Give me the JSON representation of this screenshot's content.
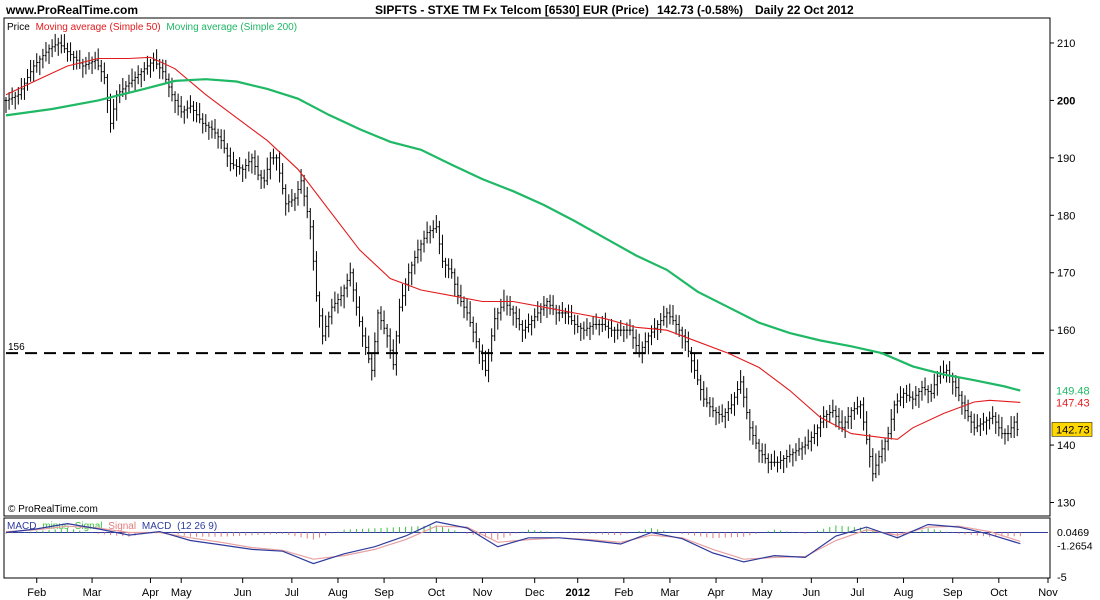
{
  "header": {
    "site": "www.ProRealTime.com",
    "title": "SIPFTS - STXE TM Fx Telcom [6530] EUR (Price)",
    "last": "142.73 (-0.58%)",
    "period": "Daily  22 Oct 2012"
  },
  "watermark": "© ProRealTime.com",
  "legend": {
    "price": "Price",
    "ma50": "Moving average (Simple 50)",
    "ma200": "Moving average (Simple 200)",
    "macd_prefix": "MACD",
    "macd_minus": "minus",
    "macd_signal_word": "Signal",
    "macd_signal": "Signal",
    "macd_line": "MACD",
    "macd_params": "(12 26 9)"
  },
  "colors": {
    "ma50": "#e31a1c",
    "ma200": "#1fb865",
    "price": "#000000",
    "signal": "#e8a0a0",
    "macd": "#2f3b9c",
    "hist_pos": "#3ec03e",
    "hist_neg": "#e37b7b",
    "last_badge": "#ffd700"
  },
  "chart_data": {
    "type": "line",
    "title": "SIPFTS - STXE TM Fx Telcom [6530] EUR (Price)",
    "price_panel": {
      "y_ticks": [
        "210",
        "200",
        "190",
        "180",
        "170",
        "160",
        "140",
        "130"
      ],
      "ylim": [
        128,
        214
      ],
      "reference_line": {
        "value": 156,
        "label": "156",
        "style": "dashed"
      },
      "axis_badges": [
        {
          "value": 149.48,
          "label": "149.48",
          "series": "ma200"
        },
        {
          "value": 147.43,
          "label": "147.43",
          "series": "ma50"
        },
        {
          "value": 142.73,
          "label": "142.73",
          "series": "price"
        }
      ],
      "series": [
        {
          "name": "Price",
          "key": "price",
          "points": [
            [
              0,
              200
            ],
            [
              4,
              201
            ],
            [
              9,
              206
            ],
            [
              14,
              209
            ],
            [
              17,
              210
            ],
            [
              21,
              208
            ],
            [
              25,
              206
            ],
            [
              29,
              207
            ],
            [
              32,
              204
            ],
            [
              34,
              196
            ],
            [
              36,
              201
            ],
            [
              40,
              203
            ],
            [
              44,
              205
            ],
            [
              48,
              207
            ],
            [
              51,
              205
            ],
            [
              54,
              201
            ],
            [
              57,
              198
            ],
            [
              60,
              199
            ],
            [
              64,
              196
            ],
            [
              67,
              195
            ],
            [
              70,
              193
            ],
            [
              73,
              189
            ],
            [
              77,
              188
            ],
            [
              80,
              190
            ],
            [
              82,
              187
            ],
            [
              84,
              186
            ],
            [
              86,
              190
            ],
            [
              88,
              190
            ],
            [
              91,
              182
            ],
            [
              94,
              183
            ],
            [
              96,
              186
            ],
            [
              99,
              178
            ],
            [
              101,
              166
            ],
            [
              103,
              159
            ],
            [
              106,
              164
            ],
            [
              109,
              166
            ],
            [
              112,
              170
            ],
            [
              114,
              164
            ],
            [
              116,
              159
            ],
            [
              119,
              153
            ],
            [
              121,
              163
            ],
            [
              124,
              159
            ],
            [
              126,
              154
            ],
            [
              128,
              164
            ],
            [
              131,
              170
            ],
            [
              134,
              174
            ],
            [
              137,
              177
            ],
            [
              140,
              178
            ],
            [
              142,
              172
            ],
            [
              145,
              170
            ],
            [
              147,
              166
            ],
            [
              150,
              163
            ],
            [
              153,
              158
            ],
            [
              156,
              153
            ],
            [
              159,
              162
            ],
            [
              162,
              165
            ],
            [
              165,
              163
            ],
            [
              168,
              160
            ],
            [
              170,
              161
            ],
            [
              173,
              163
            ],
            [
              176,
              165
            ],
            [
              179,
              163
            ],
            [
              182,
              163
            ],
            [
              185,
              161
            ],
            [
              188,
              160
            ],
            [
              191,
              161
            ],
            [
              194,
              161
            ],
            [
              197,
              160
            ],
            [
              200,
              160
            ],
            [
              203,
              160
            ],
            [
              206,
              156
            ],
            [
              209,
              159
            ],
            [
              212,
              161
            ],
            [
              215,
              163
            ],
            [
              218,
              161
            ],
            [
              221,
              158
            ],
            [
              224,
              153
            ],
            [
              227,
              148
            ],
            [
              230,
              146
            ],
            [
              233,
              145
            ],
            [
              236,
              147
            ],
            [
              239,
              151
            ],
            [
              242,
              143
            ],
            [
              245,
              139
            ],
            [
              248,
              137
            ],
            [
              251,
              137
            ],
            [
              254,
              138
            ],
            [
              257,
              139
            ],
            [
              260,
              140
            ],
            [
              263,
              142
            ],
            [
              266,
              145
            ],
            [
              269,
              146
            ],
            [
              272,
              143
            ],
            [
              275,
              146
            ],
            [
              278,
              147
            ],
            [
              280,
              141
            ],
            [
              282,
              135
            ],
            [
              284,
              138
            ],
            [
              287,
              142
            ],
            [
              289,
              147
            ],
            [
              292,
              149
            ],
            [
              295,
              148
            ],
            [
              298,
              150
            ],
            [
              301,
              149
            ],
            [
              303,
              152
            ],
            [
              306,
              153
            ],
            [
              309,
              150
            ],
            [
              312,
              146
            ],
            [
              315,
              143
            ],
            [
              318,
              144
            ],
            [
              321,
              145
            ],
            [
              324,
              142
            ],
            [
              326,
              142
            ],
            [
              328,
              144
            ],
            [
              329,
              142.73
            ]
          ]
        },
        {
          "name": "Moving average (Simple 50)",
          "key": "ma50",
          "points": [
            [
              0,
              201
            ],
            [
              10,
              203.5
            ],
            [
              20,
              206
            ],
            [
              30,
              207.3
            ],
            [
              40,
              207.3
            ],
            [
              47,
              207.5
            ],
            [
              55,
              205.5
            ],
            [
              65,
              201
            ],
            [
              75,
              197
            ],
            [
              85,
              193
            ],
            [
              95,
              188
            ],
            [
              105,
              181
            ],
            [
              115,
              174
            ],
            [
              125,
              169
            ],
            [
              135,
              167
            ],
            [
              145,
              166
            ],
            [
              155,
              165
            ],
            [
              165,
              165
            ],
            [
              175,
              164
            ],
            [
              185,
              163
            ],
            [
              195,
              162
            ],
            [
              205,
              160.5
            ],
            [
              215,
              160
            ],
            [
              225,
              158
            ],
            [
              235,
              156
            ],
            [
              245,
              153.5
            ],
            [
              255,
              149.5
            ],
            [
              265,
              144.8
            ],
            [
              275,
              142
            ],
            [
              285,
              141.3
            ],
            [
              290,
              141
            ],
            [
              295,
              143
            ],
            [
              305,
              145.5
            ],
            [
              315,
              147.5
            ],
            [
              320,
              147.8
            ],
            [
              330,
              147.43
            ]
          ]
        },
        {
          "name": "Moving average (Simple 200)",
          "key": "ma200",
          "points": [
            [
              0,
              197.4
            ],
            [
              15,
              198.5
            ],
            [
              30,
              200
            ],
            [
              45,
              202
            ],
            [
              55,
              203.4
            ],
            [
              65,
              203.7
            ],
            [
              75,
              203.3
            ],
            [
              85,
              202
            ],
            [
              95,
              200.3
            ],
            [
              105,
              197.5
            ],
            [
              115,
              195
            ],
            [
              125,
              192.8
            ],
            [
              135,
              191.4
            ],
            [
              145,
              188.8
            ],
            [
              155,
              186.3
            ],
            [
              165,
              184.2
            ],
            [
              175,
              181.8
            ],
            [
              185,
              179
            ],
            [
              195,
              176
            ],
            [
              205,
              173
            ],
            [
              215,
              170.5
            ],
            [
              225,
              166.7
            ],
            [
              235,
              164
            ],
            [
              245,
              161.3
            ],
            [
              255,
              159.5
            ],
            [
              265,
              158.2
            ],
            [
              275,
              157.2
            ],
            [
              285,
              156
            ],
            [
              295,
              153.7
            ],
            [
              305,
              152.3
            ],
            [
              315,
              151.3
            ],
            [
              325,
              150.2
            ],
            [
              330,
              149.48
            ]
          ]
        }
      ]
    },
    "macd_panel": {
      "ylim": [
        -5,
        1.4
      ],
      "y_ticks": [
        "-5"
      ],
      "axis_badges": [
        {
          "value": 0.0469,
          "label": "0.0469"
        },
        {
          "value": -1.2654,
          "label": "-1.2654"
        }
      ],
      "series": [
        {
          "name": "MACD",
          "key": "macd",
          "points": [
            [
              0,
              0
            ],
            [
              10,
              0.4
            ],
            [
              20,
              1
            ],
            [
              30,
              0.4
            ],
            [
              40,
              -0.3
            ],
            [
              50,
              0.1
            ],
            [
              60,
              -0.9
            ],
            [
              70,
              -1.4
            ],
            [
              80,
              -1.9
            ],
            [
              90,
              -2.1
            ],
            [
              100,
              -3.5
            ],
            [
              110,
              -2.4
            ],
            [
              120,
              -1.6
            ],
            [
              130,
              -0.4
            ],
            [
              140,
              1.2
            ],
            [
              150,
              0.5
            ],
            [
              160,
              -1.6
            ],
            [
              170,
              -0.6
            ],
            [
              180,
              -0.6
            ],
            [
              190,
              -0.9
            ],
            [
              200,
              -1.3
            ],
            [
              210,
              0
            ],
            [
              220,
              -0.7
            ],
            [
              230,
              -2.3
            ],
            [
              240,
              -3.3
            ],
            [
              250,
              -2.6
            ],
            [
              260,
              -2.8
            ],
            [
              270,
              -0.4
            ],
            [
              280,
              0.6
            ],
            [
              290,
              -0.6
            ],
            [
              300,
              0.9
            ],
            [
              310,
              0.6
            ],
            [
              320,
              -0.2
            ],
            [
              330,
              -1.2654
            ]
          ]
        },
        {
          "name": "Signal",
          "key": "signal",
          "points": [
            [
              0,
              0.1
            ],
            [
              10,
              0.3
            ],
            [
              20,
              0.7
            ],
            [
              30,
              0.5
            ],
            [
              40,
              0
            ],
            [
              50,
              0
            ],
            [
              60,
              -0.6
            ],
            [
              70,
              -1.1
            ],
            [
              80,
              -1.7
            ],
            [
              90,
              -2
            ],
            [
              100,
              -3
            ],
            [
              110,
              -2.6
            ],
            [
              120,
              -1.9
            ],
            [
              130,
              -0.8
            ],
            [
              140,
              0.7
            ],
            [
              150,
              0.6
            ],
            [
              160,
              -1.1
            ],
            [
              170,
              -0.8
            ],
            [
              180,
              -0.6
            ],
            [
              190,
              -0.8
            ],
            [
              200,
              -1.1
            ],
            [
              210,
              -0.3
            ],
            [
              220,
              -0.6
            ],
            [
              230,
              -1.9
            ],
            [
              240,
              -3
            ],
            [
              250,
              -2.8
            ],
            [
              260,
              -2.7
            ],
            [
              270,
              -0.9
            ],
            [
              280,
              0.3
            ],
            [
              290,
              -0.3
            ],
            [
              300,
              0.6
            ],
            [
              310,
              0.7
            ],
            [
              320,
              0.1
            ],
            [
              330,
              -1
            ]
          ]
        }
      ]
    },
    "x_ticks": [
      "Feb",
      "Mar",
      "Apr",
      "May",
      "Jun",
      "Jul",
      "Aug",
      "Sep",
      "Oct",
      "Nov",
      "Dec",
      "2012",
      "Feb",
      "Mar",
      "Apr",
      "May",
      "Jun",
      "Jul",
      "Aug",
      "Sep",
      "Oct",
      "Nov"
    ],
    "x_tick_index": [
      10,
      28,
      47,
      57,
      77,
      93,
      108,
      123,
      140,
      155,
      172,
      186,
      201,
      216,
      231,
      246,
      262,
      277,
      292,
      308,
      323,
      339
    ],
    "grid": false,
    "legend_position": "top-left"
  }
}
